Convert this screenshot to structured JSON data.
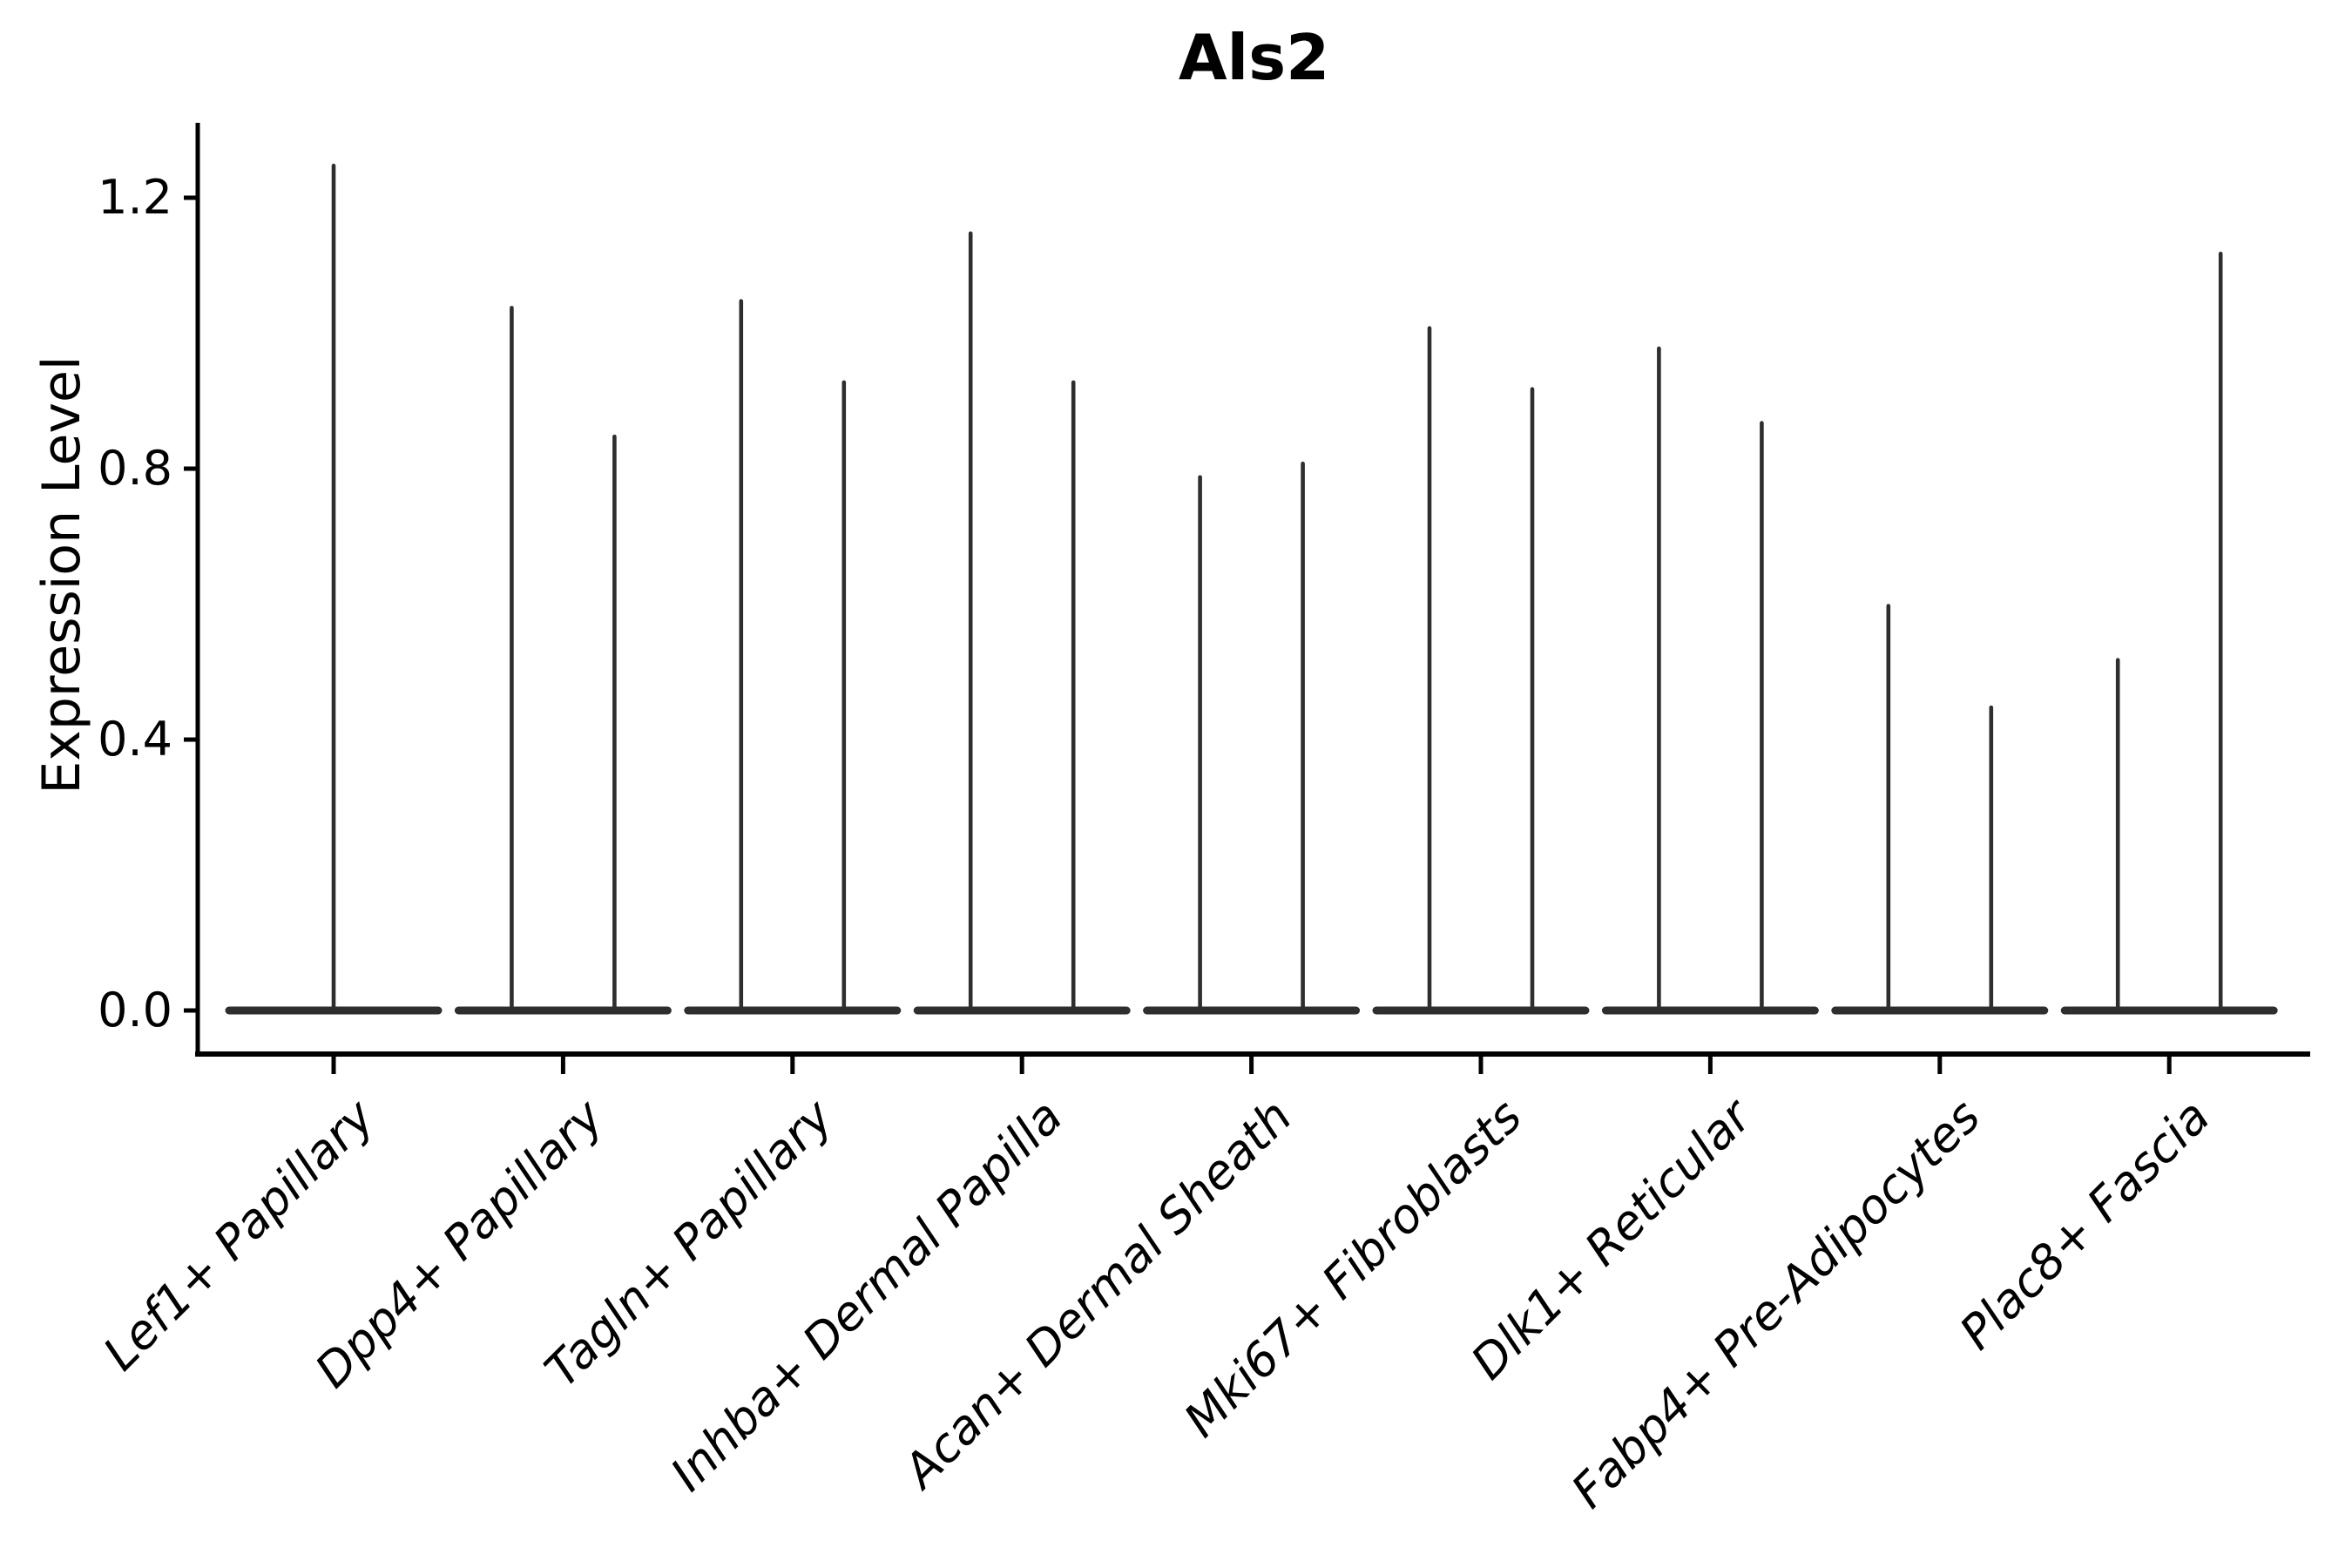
{
  "title": "Als2",
  "y_axis": {
    "label": "Expression Level",
    "tick_labels": [
      "0.0",
      "0.4",
      "0.8",
      "1.2"
    ],
    "tick_values": [
      0.0,
      0.4,
      0.8,
      1.2
    ]
  },
  "chart_data": {
    "type": "violin",
    "title": "Als2",
    "xlabel": "",
    "ylabel": "Expression Level",
    "ylim": [
      0,
      1.31
    ],
    "yticks": [
      0.0,
      0.4,
      0.8,
      1.2
    ],
    "grid": false,
    "legend": "none",
    "style": "collapsed violins: flat body at 0 with thin vertical tail spike up to the max expression value; two violins per category except Lef1+ Papillary which has one centered wide violin",
    "categories": [
      "Lef1+ Papillary",
      "Dpp4+ Papillary",
      "Tagln+ Papillary",
      "Inhba+ Dermal Papilla",
      "Acan+ Dermal Sheath",
      "Mki67+ Fibroblasts",
      "Dlk1+ Reticular",
      "Fabp4+ Pre-Adipocytes",
      "Plac8+ Fascia"
    ],
    "violin_peaks": [
      [
        1.25
      ],
      [
        1.04,
        0.85
      ],
      [
        1.05,
        0.93
      ],
      [
        1.15,
        0.93
      ],
      [
        0.79,
        0.81
      ],
      [
        1.01,
        0.92
      ],
      [
        0.98,
        0.87
      ],
      [
        0.6,
        0.45
      ],
      [
        0.52,
        1.12
      ]
    ]
  },
  "colors": {
    "violin_line": "#2e2e2e",
    "axis": "#000000",
    "text": "#000000",
    "background": "#ffffff"
  }
}
